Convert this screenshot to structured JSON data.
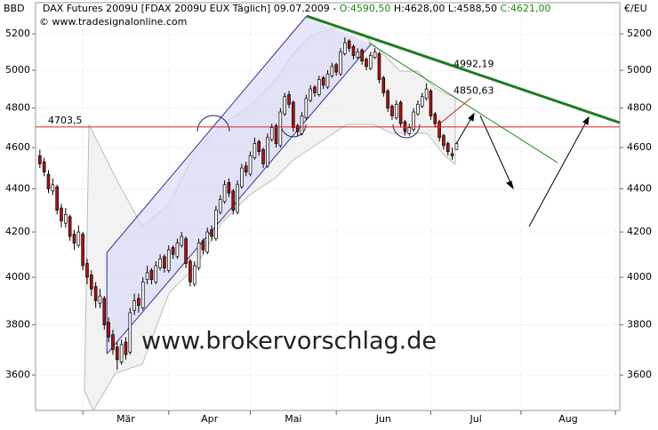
{
  "chart_data": {
    "type": "candlestick",
    "header": {
      "title": "DAX Futures 2009U [FDAX 2009U EUX  Täglich] 09.07.2009 -",
      "open": "O:4590,50",
      "high_low": "H:4628,00 L:4588,50",
      "close": "C:4621,00"
    },
    "copyright": "© www.tradesignalonline.com",
    "watermark": "www.brokervorschlag.de",
    "y_label_left": "BBD",
    "y_label_right": "€/EU",
    "log_y": true,
    "ylim": [
      3465,
      5352
    ],
    "yticks": [
      3600,
      3800,
      4000,
      4200,
      4400,
      4600,
      4800,
      5000,
      5200
    ],
    "xlim": [
      -1,
      135
    ],
    "month_starts": [
      10,
      30,
      49,
      69,
      91,
      112,
      134
    ],
    "months": [
      "Mär",
      "Apr",
      "Mai",
      "Jun",
      "Jul",
      "Aug"
    ],
    "up_color": "#ffffff",
    "down_color": "#b01010",
    "candles": [
      [
        4560,
        4590,
        4500,
        4520
      ],
      [
        4530,
        4550,
        4460,
        4480
      ],
      [
        4470,
        4490,
        4380,
        4400
      ],
      [
        4390,
        4450,
        4370,
        4420
      ],
      [
        4410,
        4420,
        4280,
        4300
      ],
      [
        4310,
        4330,
        4220,
        4250
      ],
      [
        4240,
        4310,
        4220,
        4280
      ],
      [
        4270,
        4280,
        4160,
        4180
      ],
      [
        4190,
        4210,
        4120,
        4150
      ],
      [
        4140,
        4230,
        4130,
        4200
      ],
      [
        4190,
        4200,
        4030,
        4050
      ],
      [
        4060,
        4080,
        3970,
        4000
      ],
      [
        4010,
        4030,
        3920,
        3950
      ],
      [
        3960,
        3980,
        3870,
        3900
      ],
      [
        3890,
        3950,
        3870,
        3920
      ],
      [
        3910,
        3920,
        3780,
        3800
      ],
      [
        3810,
        3830,
        3730,
        3750
      ],
      [
        3760,
        3780,
        3680,
        3700
      ],
      [
        3710,
        3730,
        3620,
        3660
      ],
      [
        3650,
        3740,
        3640,
        3720
      ],
      [
        3730,
        3750,
        3660,
        3680
      ],
      [
        3690,
        3870,
        3680,
        3850
      ],
      [
        3860,
        3930,
        3840,
        3900
      ],
      [
        3910,
        3930,
        3850,
        3880
      ],
      [
        3870,
        4000,
        3860,
        3980
      ],
      [
        3990,
        4050,
        3970,
        4020
      ],
      [
        4030,
        4040,
        3970,
        3990
      ],
      [
        3980,
        4070,
        3970,
        4050
      ],
      [
        4040,
        4100,
        4030,
        4080
      ],
      [
        4090,
        4100,
        4020,
        4040
      ],
      [
        4030,
        4140,
        4020,
        4120
      ],
      [
        4130,
        4140,
        4080,
        4100
      ],
      [
        4090,
        4170,
        4080,
        4150
      ],
      [
        4140,
        4200,
        4130,
        4180
      ],
      [
        4170,
        4180,
        4040,
        4060
      ],
      [
        4070,
        4080,
        3960,
        3980
      ],
      [
        3970,
        4070,
        3960,
        4050
      ],
      [
        4040,
        4170,
        4030,
        4150
      ],
      [
        4160,
        4170,
        4100,
        4120
      ],
      [
        4110,
        4220,
        4100,
        4200
      ],
      [
        4210,
        4230,
        4160,
        4180
      ],
      [
        4170,
        4320,
        4160,
        4300
      ],
      [
        4290,
        4370,
        4280,
        4350
      ],
      [
        4340,
        4440,
        4330,
        4420
      ],
      [
        4430,
        4450,
        4360,
        4380
      ],
      [
        4390,
        4400,
        4280,
        4300
      ],
      [
        4290,
        4440,
        4280,
        4420
      ],
      [
        4410,
        4520,
        4400,
        4500
      ],
      [
        4510,
        4530,
        4460,
        4480
      ],
      [
        4470,
        4580,
        4460,
        4560
      ],
      [
        4550,
        4650,
        4540,
        4620
      ],
      [
        4630,
        4640,
        4560,
        4580
      ],
      [
        4590,
        4600,
        4500,
        4520
      ],
      [
        4510,
        4670,
        4500,
        4650
      ],
      [
        4640,
        4720,
        4630,
        4700
      ],
      [
        4710,
        4720,
        4600,
        4620
      ],
      [
        4610,
        4800,
        4600,
        4780
      ],
      [
        4770,
        4880,
        4760,
        4860
      ],
      [
        4870,
        4890,
        4800,
        4820
      ],
      [
        4830,
        4840,
        4680,
        4700
      ],
      [
        4710,
        4720,
        4660,
        4680
      ],
      [
        4670,
        4780,
        4660,
        4760
      ],
      [
        4750,
        4870,
        4740,
        4850
      ],
      [
        4840,
        4920,
        4830,
        4900
      ],
      [
        4910,
        4920,
        4860,
        4880
      ],
      [
        4870,
        4970,
        4860,
        4950
      ],
      [
        4960,
        4970,
        4900,
        4920
      ],
      [
        4910,
        5000,
        4900,
        4980
      ],
      [
        4970,
        5040,
        4960,
        5020
      ],
      [
        5030,
        5040,
        4970,
        4990
      ],
      [
        4980,
        5120,
        4970,
        5100
      ],
      [
        5090,
        5180,
        5080,
        5150
      ],
      [
        5160,
        5170,
        5100,
        5120
      ],
      [
        5130,
        5140,
        5060,
        5080
      ],
      [
        5070,
        5120,
        5060,
        5100
      ],
      [
        5110,
        5120,
        5030,
        5050
      ],
      [
        5060,
        5070,
        5000,
        5020
      ],
      [
        5010,
        5100,
        5000,
        5080
      ],
      [
        5070,
        5120,
        5060,
        5100
      ],
      [
        5090,
        5100,
        4930,
        4950
      ],
      [
        4960,
        4970,
        4860,
        4880
      ],
      [
        4890,
        4900,
        4780,
        4800
      ],
      [
        4810,
        4820,
        4740,
        4760
      ],
      [
        4750,
        4840,
        4740,
        4820
      ],
      [
        4830,
        4840,
        4700,
        4720
      ],
      [
        4730,
        4740,
        4660,
        4680
      ],
      [
        4670,
        4720,
        4660,
        4700
      ],
      [
        4690,
        4800,
        4680,
        4780
      ],
      [
        4770,
        4840,
        4760,
        4820
      ],
      [
        4810,
        4880,
        4800,
        4860
      ],
      [
        4850,
        4930,
        4840,
        4900
      ],
      [
        4890,
        4900,
        4740,
        4760
      ],
      [
        4770,
        4780,
        4700,
        4720
      ],
      [
        4730,
        4740,
        4630,
        4650
      ],
      [
        4660,
        4670,
        4590,
        4610
      ],
      [
        4620,
        4630,
        4560,
        4580
      ],
      [
        4570,
        4600,
        4540,
        4560
      ],
      [
        4590.5,
        4628,
        4588.5,
        4621
      ]
    ],
    "hline": {
      "value": 4703.5,
      "label": "4703,5",
      "color": "#e02020"
    },
    "channel": {
      "color": "#3030a0",
      "fill": "#dcdcf8",
      "lower": [
        [
          15.6,
          3683
        ],
        [
          77,
          5140
        ]
      ],
      "upper": [
        [
          15.6,
          4108
        ],
        [
          62.1,
          5301
        ]
      ]
    },
    "trendlines": [
      {
        "color": "#1f7a1f",
        "width": 3,
        "points": [
          [
            62.1,
            5301
          ],
          [
            135,
            4725
          ]
        ],
        "label": {
          "value": 4992.19,
          "label": "4992,19"
        }
      },
      {
        "color": "#1f8a1f",
        "width": 1,
        "points": [
          [
            76.6,
            5150
          ],
          [
            120.5,
            4526
          ]
        ],
        "label": {
          "value": 4850.63,
          "label": "4850,63"
        }
      },
      {
        "color": "#e02020",
        "width": 1,
        "points": [
          [
            92.2,
            4703
          ],
          [
            100.4,
            4853
          ]
        ]
      }
    ]
  }
}
